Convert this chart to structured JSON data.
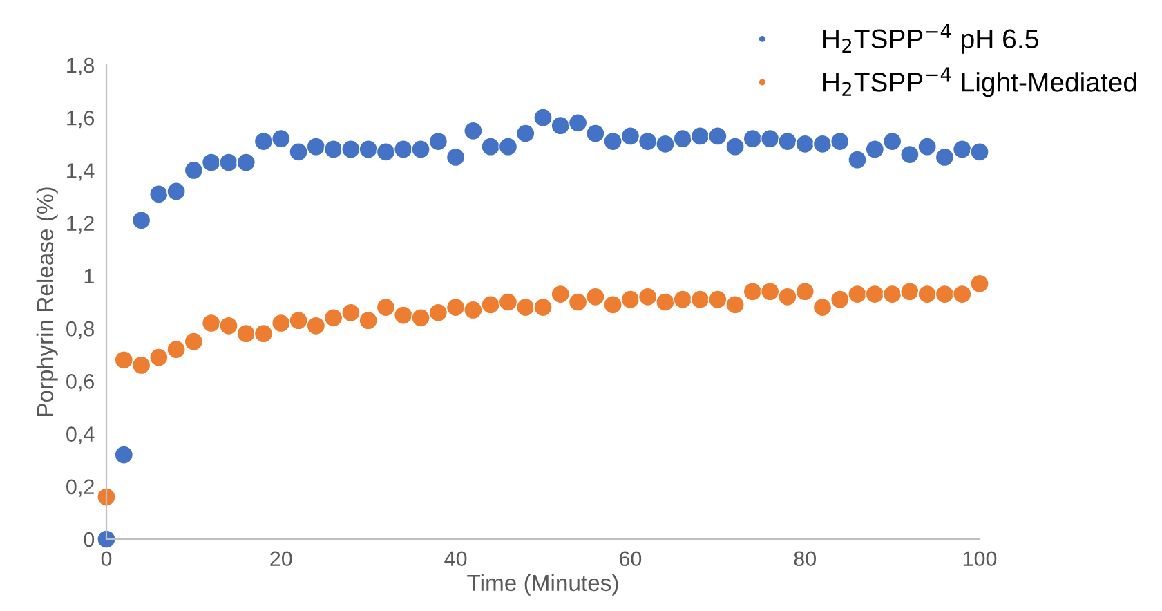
{
  "chart_data": {
    "type": "scatter",
    "xlabel": "Time (Minutes)",
    "ylabel": "Porphyrin Release (%)",
    "x": [
      0,
      2,
      4,
      6,
      8,
      10,
      12,
      14,
      16,
      18,
      20,
      22,
      24,
      26,
      28,
      30,
      32,
      34,
      36,
      38,
      40,
      42,
      44,
      46,
      48,
      50,
      52,
      54,
      56,
      58,
      60,
      62,
      64,
      66,
      68,
      70,
      72,
      74,
      76,
      78,
      80,
      82,
      84,
      86,
      88,
      90,
      92,
      94,
      96,
      98,
      100
    ],
    "series": [
      {
        "name": "H$_{2}$TSPP$^{−4}$ pH 6.5",
        "color": "#4472c4",
        "values": [
          0,
          0.32,
          1.21,
          1.31,
          1.32,
          1.4,
          1.43,
          1.43,
          1.43,
          1.51,
          1.52,
          1.47,
          1.49,
          1.48,
          1.48,
          1.48,
          1.47,
          1.48,
          1.48,
          1.51,
          1.45,
          1.55,
          1.49,
          1.49,
          1.54,
          1.6,
          1.57,
          1.58,
          1.54,
          1.51,
          1.53,
          1.51,
          1.5,
          1.52,
          1.53,
          1.53,
          1.49,
          1.52,
          1.52,
          1.51,
          1.5,
          1.5,
          1.51,
          1.44,
          1.48,
          1.51,
          1.46,
          1.49,
          1.45,
          1.48,
          1.47
        ]
      },
      {
        "name": "H$_{2}$TSPP$^{−4}$ Light-Mediated",
        "color": "#ed7d31",
        "values": [
          0.16,
          0.68,
          0.66,
          0.69,
          0.72,
          0.75,
          0.82,
          0.81,
          0.78,
          0.78,
          0.82,
          0.83,
          0.81,
          0.84,
          0.86,
          0.83,
          0.88,
          0.85,
          0.84,
          0.86,
          0.88,
          0.87,
          0.89,
          0.9,
          0.88,
          0.88,
          0.93,
          0.9,
          0.92,
          0.89,
          0.91,
          0.92,
          0.9,
          0.91,
          0.91,
          0.91,
          0.89,
          0.94,
          0.94,
          0.92,
          0.94,
          0.88,
          0.91,
          0.93,
          0.93,
          0.93,
          0.94,
          0.93,
          0.93,
          0.93,
          0.97
        ]
      }
    ],
    "xlim": [
      0,
      100
    ],
    "xticks": [
      0,
      20,
      40,
      60,
      80,
      100
    ],
    "ylim": [
      0,
      1.8
    ],
    "yticks": [
      0,
      {
        "value": 0.2,
        "label": "0,2"
      },
      {
        "value": 0.4,
        "label": "0,4"
      },
      {
        "value": 0.6,
        "label": "0,6"
      },
      {
        "value": 0.8,
        "label": "0,8"
      },
      1,
      {
        "value": 1.2,
        "label": "1,2"
      },
      {
        "value": 1.4,
        "label": "1,4"
      },
      {
        "value": 1.6,
        "label": "1,6"
      },
      {
        "value": 1.8,
        "label": "1,8"
      }
    ],
    "marker": "circle",
    "legend": "top right",
    "grid": false
  }
}
